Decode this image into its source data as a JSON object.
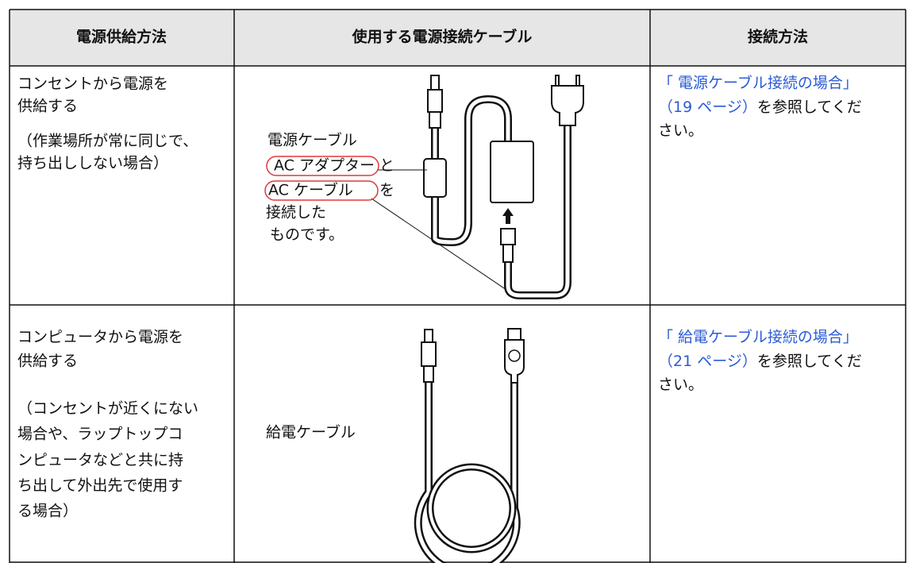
{
  "table": {
    "header": [
      "電源供給方法",
      "使用する電源接続ケーブル",
      "接続方法"
    ],
    "rows": [
      {
        "method": [
          "コンセントから電源を",
          "供給する"
        ],
        "note": [
          "（作業場所が常に同じで、",
          "持ち出ししない場合）"
        ],
        "cable": {
          "intro": "電源ケーブル",
          "item1": "AC アダプター",
          "join1": "と",
          "item2": "AC ケーブル",
          "join2": "を",
          "end": [
            "接続した",
            "ものです。"
          ]
        },
        "link": {
          "title": "「 電源ケーブル接続の場合」",
          "page": "（19 ページ）",
          "rest": "を参照してくだ",
          "rest2": "さい。"
        }
      },
      {
        "method": [
          "コンピュータから電源を",
          "供給する"
        ],
        "note": [
          "（コンセントが近くにない",
          "場合や、ラップトップコ",
          "ンピュータなどと共に持",
          "ち出して外出先で使用す",
          "る場合）"
        ],
        "cable": {
          "intro": "給電ケーブル"
        },
        "link": {
          "title": "「 給電ケーブル接続の場合」",
          "page": "（21 ページ）",
          "rest": "を参照してくだ",
          "rest2": "さい。"
        }
      }
    ]
  }
}
